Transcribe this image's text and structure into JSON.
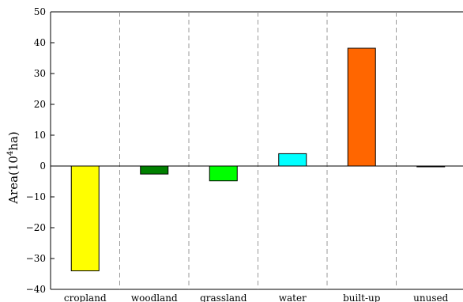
{
  "chart_data": {
    "type": "bar",
    "categories": [
      "cropland",
      "woodland",
      "grassland",
      "water",
      "built-up",
      "unused"
    ],
    "values": [
      -34,
      -2.6,
      -4.8,
      4,
      38.2,
      -0.2
    ],
    "colors": [
      "#ffff00",
      "#008000",
      "#00ff00",
      "#00ffff",
      "#ff6600",
      "#000000"
    ],
    "ylabel_base": "Area(10",
    "ylabel_sup": "4",
    "ylabel_tail": "ha)",
    "ylim": [
      -40,
      50
    ],
    "yticks": [
      -40,
      -30,
      -20,
      -10,
      0,
      10,
      20,
      30,
      40,
      50
    ],
    "grid": "vertical dashed separators between categories",
    "legend": "none"
  }
}
